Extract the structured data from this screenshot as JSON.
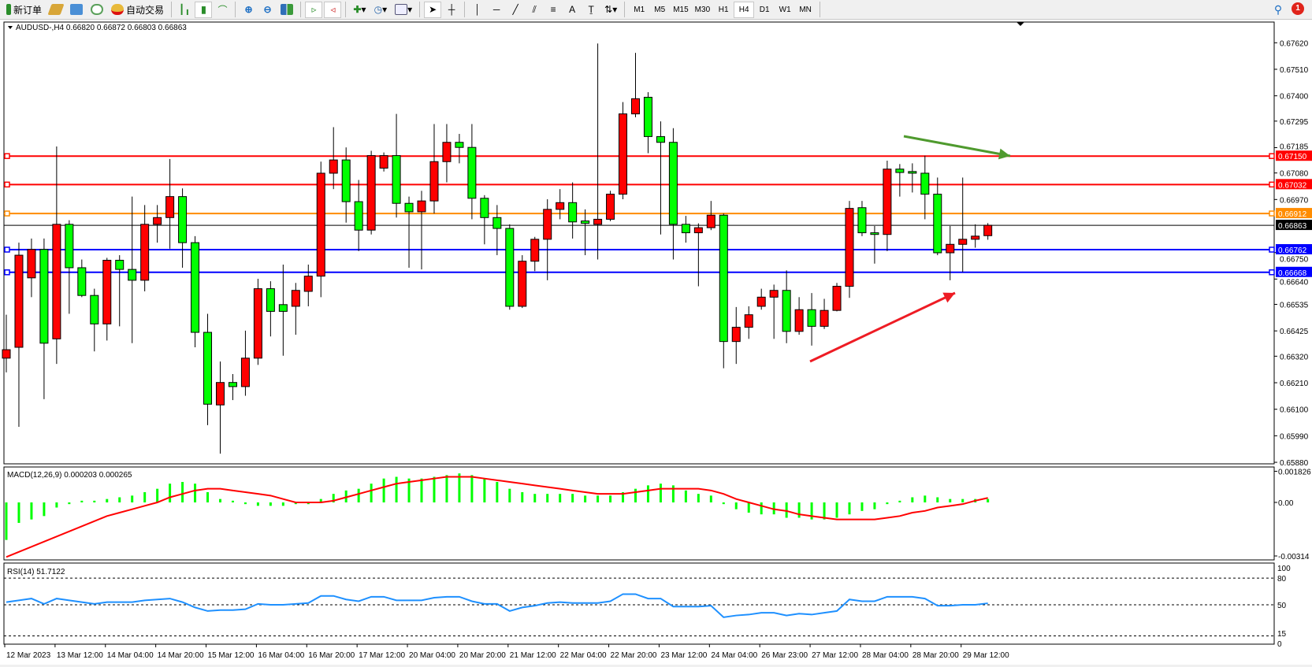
{
  "toolbar": {
    "new_order": "新订单",
    "auto_trading": "自动交易",
    "timeframes": [
      "M1",
      "M5",
      "M15",
      "M30",
      "H1",
      "H4",
      "D1",
      "W1",
      "MN"
    ],
    "active_timeframe": "H4",
    "notification_count": "1",
    "icons": [
      "new-order-icon",
      "market-watch-icon",
      "navigator-icon",
      "signals-icon",
      "auto-trading-icon",
      "bar-chart-icon",
      "candlestick-icon",
      "line-chart-icon",
      "zoom-in-icon",
      "zoom-out-icon",
      "tile-windows-icon",
      "auto-scroll-icon",
      "chart-shift-icon",
      "new-chart-icon",
      "periods-icon",
      "templates-icon",
      "cursor-icon",
      "crosshair-icon",
      "vertical-line-icon",
      "horizontal-line-icon",
      "trendline-icon",
      "fibonacci-icon",
      "fibo-fan-icon",
      "text-icon",
      "text-label-icon",
      "arrows-icon",
      "search-icon",
      "notification-icon"
    ]
  },
  "chart": {
    "header": "AUDUSD-,H4  0.66820 0.66872 0.66803 0.66863",
    "colors": {
      "bull": "#ff0000",
      "bear": "#00ff00",
      "outline": "#000000",
      "macd_hist": "#00ff00",
      "macd_signal": "#ff0000",
      "rsi": "#1e90ff"
    },
    "price_ticks": [
      "0.67620",
      "0.67510",
      "0.67400",
      "0.67295",
      "0.67185",
      "0.67080",
      "0.66970",
      "0.66750",
      "0.66640",
      "0.66535",
      "0.66425",
      "0.66320",
      "0.66210",
      "0.66100",
      "0.65990",
      "0.65880"
    ],
    "bid": {
      "price": "0.66863",
      "color": "#000000"
    },
    "levels": [
      {
        "price": "0.67150",
        "color": "#ff0000"
      },
      {
        "price": "0.67032",
        "color": "#ff0000"
      },
      {
        "price": "0.66912",
        "color": "#ff8c00"
      },
      {
        "price": "0.66762",
        "color": "#0000ff"
      },
      {
        "price": "0.66668",
        "color": "#0000ff"
      }
    ],
    "arrows": [
      {
        "color": "#4f9a2e",
        "direction": "down-right"
      },
      {
        "color": "#ee1c24",
        "direction": "up-right"
      }
    ],
    "time_labels": [
      "12 Mar 2023",
      "13 Mar 12:00",
      "14 Mar 04:00",
      "14 Mar 20:00",
      "15 Mar 12:00",
      "16 Mar 04:00",
      "16 Mar 20:00",
      "17 Mar 12:00",
      "20 Mar 04:00",
      "20 Mar 20:00",
      "21 Mar 12:00",
      "22 Mar 04:00",
      "22 Mar 20:00",
      "23 Mar 12:00",
      "24 Mar 04:00",
      "26 Mar 23:00",
      "27 Mar 12:00",
      "28 Mar 04:00",
      "28 Mar 20:00",
      "29 Mar 12:00"
    ]
  },
  "macd": {
    "label": "MACD(12,26,9) 0.000203 0.000265",
    "ticks": [
      "0.001826",
      "0.00",
      "-0.00314"
    ]
  },
  "rsi": {
    "label": "RSI(14) 51.7122",
    "ticks": [
      "100",
      "80",
      "50",
      "15",
      "0"
    ]
  },
  "chart_data": [
    {
      "type": "candlestick",
      "symbol": "AUDUSD-",
      "timeframe": "H4",
      "ylim": [
        0.6588,
        0.6762
      ],
      "ohlc": [
        [
          0.66312,
          0.66492,
          0.66253,
          0.66347
        ],
        [
          0.66357,
          0.66791,
          0.66027,
          0.66739
        ],
        [
          0.66645,
          0.66808,
          0.66565,
          0.66763
        ],
        [
          0.66763,
          0.66808,
          0.66142,
          0.66374
        ],
        [
          0.66392,
          0.6719,
          0.66288,
          0.66867
        ],
        [
          0.66867,
          0.66884,
          0.66496,
          0.66687
        ],
        [
          0.66687,
          0.66721,
          0.66565,
          0.66572
        ],
        [
          0.66572,
          0.666,
          0.6634,
          0.66454
        ],
        [
          0.66454,
          0.66728,
          0.66385,
          0.66718
        ],
        [
          0.66718,
          0.66739,
          0.66444,
          0.6668
        ],
        [
          0.6668,
          0.66982,
          0.66374,
          0.66635
        ],
        [
          0.66635,
          0.66947,
          0.66589,
          0.66867
        ],
        [
          0.66867,
          0.66947,
          0.66791,
          0.66895
        ],
        [
          0.66895,
          0.67138,
          0.66766,
          0.66982
        ],
        [
          0.66982,
          0.67016,
          0.66687,
          0.66791
        ],
        [
          0.66791,
          0.66818,
          0.66357,
          0.66419
        ],
        [
          0.66419,
          0.66496,
          0.66034,
          0.66121
        ],
        [
          0.66118,
          0.66298,
          0.65916,
          0.66211
        ],
        [
          0.66211,
          0.66246,
          0.66138,
          0.66194
        ],
        [
          0.66194,
          0.66426,
          0.66156,
          0.66312
        ],
        [
          0.66312,
          0.66641,
          0.66284,
          0.666
        ],
        [
          0.666,
          0.66631,
          0.66402,
          0.66506
        ],
        [
          0.66534,
          0.667,
          0.66322,
          0.66506
        ],
        [
          0.66527,
          0.66624,
          0.66409,
          0.66593
        ],
        [
          0.66589,
          0.667,
          0.66527,
          0.66652
        ],
        [
          0.66652,
          0.67127,
          0.66565,
          0.67079
        ],
        [
          0.67079,
          0.6727,
          0.67013,
          0.67134
        ],
        [
          0.67134,
          0.67186,
          0.66874,
          0.66961
        ],
        [
          0.66961,
          0.67051,
          0.66756,
          0.66843
        ],
        [
          0.66843,
          0.67172,
          0.66825,
          0.67152
        ],
        [
          0.671,
          0.67165,
          0.67086,
          0.67152
        ],
        [
          0.67152,
          0.67325,
          0.66895,
          0.66954
        ],
        [
          0.66954,
          0.66982,
          0.66687,
          0.66919
        ],
        [
          0.66919,
          0.67006,
          0.6668,
          0.66964
        ],
        [
          0.66964,
          0.67283,
          0.66912,
          0.67127
        ],
        [
          0.67127,
          0.67283,
          0.67041,
          0.67207
        ],
        [
          0.67207,
          0.67242,
          0.6712,
          0.67186
        ],
        [
          0.67186,
          0.67283,
          0.66888,
          0.66975
        ],
        [
          0.66975,
          0.66988,
          0.66784,
          0.66895
        ],
        [
          0.66895,
          0.66947,
          0.66739,
          0.6685
        ],
        [
          0.6685,
          0.66867,
          0.66513,
          0.66527
        ],
        [
          0.66527,
          0.66739,
          0.6652,
          0.66714
        ],
        [
          0.66714,
          0.66815,
          0.66673,
          0.66805
        ],
        [
          0.66805,
          0.66971,
          0.66635,
          0.66929
        ],
        [
          0.66929,
          0.67013,
          0.66888,
          0.66957
        ],
        [
          0.66957,
          0.67041,
          0.66808,
          0.66877
        ],
        [
          0.66881,
          0.66929,
          0.66739,
          0.66871
        ],
        [
          0.66867,
          0.67617,
          0.66721,
          0.66888
        ],
        [
          0.66888,
          0.67006,
          0.6688,
          0.66992
        ],
        [
          0.66992,
          0.67374,
          0.66971,
          0.67325
        ],
        [
          0.67325,
          0.67578,
          0.67311,
          0.67388
        ],
        [
          0.67394,
          0.67415,
          0.67162,
          0.67231
        ],
        [
          0.67231,
          0.67294,
          0.66825,
          0.67207
        ],
        [
          0.67207,
          0.67266,
          0.66721,
          0.66867
        ],
        [
          0.66867,
          0.66902,
          0.66791,
          0.66832
        ],
        [
          0.66832,
          0.66871,
          0.6661,
          0.66853
        ],
        [
          0.66853,
          0.66964,
          0.66843,
          0.66905
        ],
        [
          0.66905,
          0.66912,
          0.6627,
          0.66381
        ],
        [
          0.66381,
          0.66524,
          0.66288,
          0.6644
        ],
        [
          0.6644,
          0.66527,
          0.66392,
          0.66492
        ],
        [
          0.66527,
          0.666,
          0.66513,
          0.66565
        ],
        [
          0.66565,
          0.66617,
          0.66392,
          0.66593
        ],
        [
          0.66593,
          0.66676,
          0.66374,
          0.66423
        ],
        [
          0.66423,
          0.66565,
          0.66409,
          0.66513
        ],
        [
          0.66513,
          0.66582,
          0.66364,
          0.66444
        ],
        [
          0.66444,
          0.66558,
          0.66433,
          0.6651
        ],
        [
          0.6651,
          0.66624,
          0.66506,
          0.6661
        ],
        [
          0.6661,
          0.66964,
          0.66562,
          0.66933
        ],
        [
          0.66936,
          0.66964,
          0.66818,
          0.66832
        ],
        [
          0.66832,
          0.6686,
          0.66704,
          0.66825
        ],
        [
          0.66825,
          0.67131,
          0.66756,
          0.67096
        ],
        [
          0.67096,
          0.67117,
          0.66982,
          0.67082
        ],
        [
          0.67086,
          0.6712,
          0.66999,
          0.67079
        ],
        [
          0.67079,
          0.67152,
          0.66888,
          0.66992
        ],
        [
          0.66992,
          0.67061,
          0.66739,
          0.66749
        ],
        [
          0.66749,
          0.6686,
          0.66635,
          0.66784
        ],
        [
          0.66784,
          0.67061,
          0.66669,
          0.66805
        ],
        [
          0.66805,
          0.66867,
          0.6677,
          0.66818
        ],
        [
          0.6682,
          0.66872,
          0.66803,
          0.66863
        ]
      ]
    },
    {
      "type": "bar+line",
      "name": "MACD(12,26,9)",
      "ylim": [
        -0.00314,
        0.001826
      ],
      "histogram": [
        -0.0022,
        -0.0012,
        -0.001,
        -0.0008,
        -0.0003,
        -0.0001,
        0.0001,
        0.0001,
        0.0002,
        0.0003,
        0.0004,
        0.0006,
        0.0008,
        0.0011,
        0.0012,
        0.0011,
        0.0006,
        0.0002,
        0.0001,
        -0.0001,
        -0.0002,
        -0.0002,
        -0.0002,
        -0.0001,
        -0.0001,
        0.0002,
        0.0005,
        0.0007,
        0.0008,
        0.0011,
        0.0014,
        0.0015,
        0.0014,
        0.0014,
        0.0015,
        0.0016,
        0.0017,
        0.0016,
        0.0014,
        0.0012,
        0.0008,
        0.0006,
        0.0005,
        0.0005,
        0.0005,
        0.0005,
        0.0004,
        0.0004,
        0.0004,
        0.0006,
        0.0008,
        0.001,
        0.0011,
        0.001,
        0.0007,
        0.0005,
        0.0004,
        -0.0001,
        -0.0004,
        -0.0006,
        -0.0007,
        -0.0007,
        -0.0009,
        -0.0009,
        -0.001,
        -0.001,
        -0.0009,
        -0.0007,
        -0.0005,
        -0.0004,
        -0.0001,
        0.0001,
        0.0003,
        0.0004,
        0.0003,
        0.0002,
        0.0002,
        0.0002,
        0.000203
      ],
      "signal": [
        -0.0032,
        -0.0029,
        -0.0026,
        -0.0023,
        -0.002,
        -0.0017,
        -0.0014,
        -0.0011,
        -0.0008,
        -0.0006,
        -0.0004,
        -0.0002,
        0.0,
        0.0003,
        0.0005,
        0.0007,
        0.0008,
        0.0008,
        0.0007,
        0.0006,
        0.0005,
        0.0004,
        0.0002,
        0.0,
        0.0,
        0.0,
        0.0001,
        0.0003,
        0.0005,
        0.0007,
        0.0009,
        0.0011,
        0.0012,
        0.0013,
        0.0014,
        0.0015,
        0.0015,
        0.0015,
        0.0014,
        0.0013,
        0.0012,
        0.0011,
        0.001,
        0.0009,
        0.0008,
        0.0007,
        0.0006,
        0.0005,
        0.0005,
        0.0005,
        0.0006,
        0.0007,
        0.0008,
        0.0008,
        0.0008,
        0.0008,
        0.0007,
        0.0005,
        0.0002,
        0.0,
        -0.0002,
        -0.0004,
        -0.0005,
        -0.0007,
        -0.0008,
        -0.0009,
        -0.001,
        -0.001,
        -0.001,
        -0.001,
        -0.0009,
        -0.0008,
        -0.0006,
        -0.0005,
        -0.0003,
        -0.0002,
        -0.0001,
        0.0001,
        0.000265
      ]
    },
    {
      "type": "line",
      "name": "RSI(14)",
      "ylim": [
        0,
        100
      ],
      "levels": [
        80,
        50,
        15
      ],
      "values": [
        53,
        55,
        57,
        51,
        57,
        55,
        53,
        51,
        53,
        53,
        53,
        55,
        56,
        57,
        53,
        47,
        43,
        44,
        44,
        45,
        51,
        50,
        50,
        51,
        52,
        60,
        60,
        56,
        54,
        59,
        59,
        55,
        55,
        55,
        58,
        59,
        59,
        54,
        51,
        51,
        43,
        47,
        49,
        52,
        53,
        52,
        52,
        52,
        54,
        62,
        62,
        57,
        57,
        48,
        48,
        48,
        49,
        36,
        38,
        39,
        41,
        41,
        38,
        40,
        39,
        41,
        43,
        56,
        54,
        54,
        59,
        59,
        59,
        57,
        49,
        49,
        50,
        50,
        51.7122
      ]
    }
  ]
}
